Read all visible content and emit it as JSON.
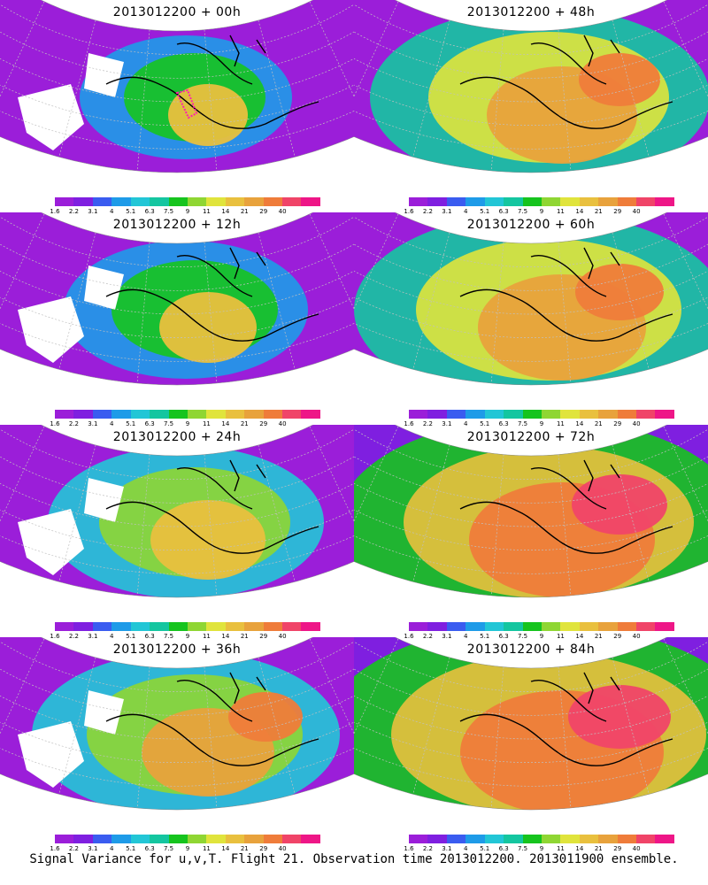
{
  "colorbar": {
    "colors": [
      "#9b1ed9",
      "#7f1fe0",
      "#3a5cf0",
      "#1e9be8",
      "#22c6d6",
      "#14c6a0",
      "#16c41e",
      "#8fd633",
      "#e0e43c",
      "#e9c03e",
      "#e8a23c",
      "#ef7c3a",
      "#f04468",
      "#ee1687"
    ],
    "labels": [
      "1.6",
      "2.2",
      "3.1",
      "4",
      "5.1",
      "6.3",
      "7.5",
      "9",
      "11",
      "14",
      "21",
      "29",
      "40"
    ]
  },
  "map_colors": {
    "land_outline": "#000000",
    "grid_line": "#c0c0c0",
    "missing_data": "#ffffff"
  },
  "panels": [
    {
      "title": "2013012200 + 00h"
    },
    {
      "title": "2013012200 + 48h"
    },
    {
      "title": "2013012200 + 12h"
    },
    {
      "title": "2013012200 + 60h"
    },
    {
      "title": "2013012200 + 24h"
    },
    {
      "title": "2013012200 + 72h"
    },
    {
      "title": "2013012200 + 36h"
    },
    {
      "title": "2013012200 + 84h"
    }
  ],
  "caption": "Signal Variance for u,v,T. Flight 21. Observation time 2013012200. 2013011900 ensemble."
}
